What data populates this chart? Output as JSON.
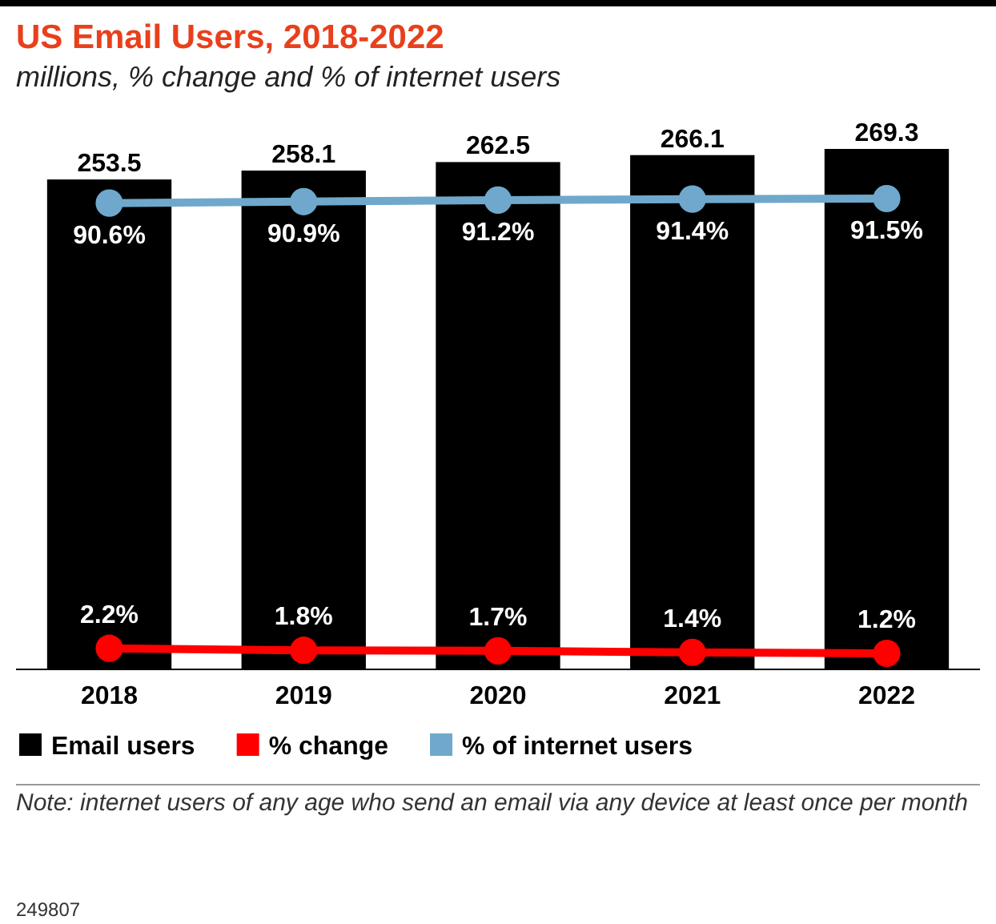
{
  "chart_data": {
    "type": "bar",
    "title": "US Email Users, 2018-2022",
    "subtitle": "millions, % change and % of internet users",
    "categories": [
      "2018",
      "2019",
      "2020",
      "2021",
      "2022"
    ],
    "series": [
      {
        "name": "Email users",
        "color": "#000000",
        "values": [
          253.5,
          258.1,
          262.5,
          266.1,
          269.3
        ]
      },
      {
        "name": "% change",
        "type": "line",
        "axis": "y2",
        "color": "#ff0000",
        "values": [
          2.2,
          1.8,
          1.7,
          1.4,
          1.2
        ],
        "value_labels": [
          "2.2%",
          "1.8%",
          "1.7%",
          "1.4%",
          "1.2%"
        ]
      },
      {
        "name": "% of internet users",
        "type": "line",
        "axis": "y2",
        "color": "#6fa8cc",
        "values": [
          90.6,
          90.9,
          91.2,
          91.4,
          91.5
        ],
        "value_labels": [
          "90.6%",
          "90.9%",
          "91.2%",
          "91.4%",
          "91.5%"
        ]
      }
    ],
    "tick_labels": "x",
    "data_labels": true,
    "marker": "circle",
    "legend": "bottom",
    "annotations": [
      "Note: internet users of any age who send an email via any device at least once per month",
      "249807"
    ]
  }
}
